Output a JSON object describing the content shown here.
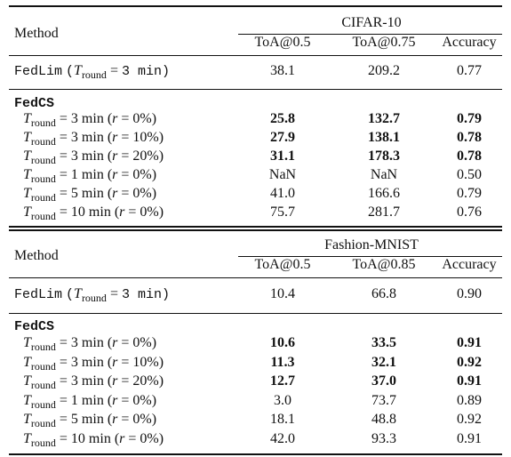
{
  "tables": [
    {
      "dataset": "CIFAR-10",
      "header": {
        "method": "Method",
        "columns": [
          "ToA@0.5",
          "ToA@0.75",
          "Accuracy"
        ]
      },
      "baseline": {
        "name": "FedLim",
        "setting": "(T_round = 3 min)",
        "values": [
          "38.1",
          "209.2",
          "0.77"
        ]
      },
      "group": "FedCS",
      "rows": [
        {
          "label": "T_round = 3 min (r = 0%)",
          "values": [
            "25.8",
            "132.7",
            "0.79"
          ],
          "bold": [
            true,
            true,
            true
          ]
        },
        {
          "label": "T_round = 3 min (r = 10%)",
          "values": [
            "27.9",
            "138.1",
            "0.78"
          ],
          "bold": [
            true,
            true,
            true
          ]
        },
        {
          "label": "T_round = 3 min (r = 20%)",
          "values": [
            "31.1",
            "178.3",
            "0.78"
          ],
          "bold": [
            true,
            true,
            true
          ]
        },
        {
          "label": "T_round = 1 min (r = 0%)",
          "values": [
            "NaN",
            "NaN",
            "0.50"
          ],
          "bold": [
            false,
            false,
            false
          ]
        },
        {
          "label": "T_round = 5 min (r = 0%)",
          "values": [
            "41.0",
            "166.6",
            "0.79"
          ],
          "bold": [
            false,
            false,
            false
          ]
        },
        {
          "label": "T_round = 10 min (r = 0%)",
          "values": [
            "75.7",
            "281.7",
            "0.76"
          ],
          "bold": [
            false,
            false,
            false
          ]
        }
      ]
    },
    {
      "dataset": "Fashion-MNIST",
      "header": {
        "method": "Method",
        "columns": [
          "ToA@0.5",
          "ToA@0.85",
          "Accuracy"
        ]
      },
      "baseline": {
        "name": "FedLim",
        "setting": "(T_round = 3 min)",
        "values": [
          "10.4",
          "66.8",
          "0.90"
        ]
      },
      "group": "FedCS",
      "rows": [
        {
          "label": "T_round = 3 min (r = 0%)",
          "values": [
            "10.6",
            "33.5",
            "0.91"
          ],
          "bold": [
            true,
            true,
            true
          ]
        },
        {
          "label": "T_round = 3 min (r = 10%)",
          "values": [
            "11.3",
            "32.1",
            "0.92"
          ],
          "bold": [
            true,
            true,
            true
          ]
        },
        {
          "label": "T_round = 3 min (r = 20%)",
          "values": [
            "12.7",
            "37.0",
            "0.91"
          ],
          "bold": [
            true,
            true,
            true
          ]
        },
        {
          "label": "T_round = 1 min (r = 0%)",
          "values": [
            "3.0",
            "73.7",
            "0.89"
          ],
          "bold": [
            false,
            false,
            false
          ]
        },
        {
          "label": "T_round = 5 min (r = 0%)",
          "values": [
            "18.1",
            "48.8",
            "0.92"
          ],
          "bold": [
            false,
            false,
            false
          ]
        },
        {
          "label": "T_round = 10 min (r = 0%)",
          "values": [
            "42.0",
            "93.3",
            "0.91"
          ],
          "bold": [
            false,
            false,
            false
          ]
        }
      ]
    }
  ]
}
